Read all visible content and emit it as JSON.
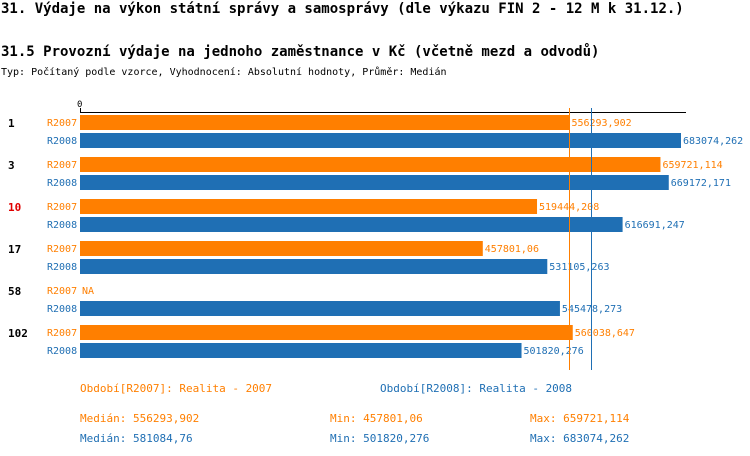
{
  "header": {
    "title": "31. Výdaje na výkon státní správy a samosprávy (dle výkazu FIN 2 - 12 M k 31.12.)",
    "subtitle": "31.5 Provozní výdaje na jednoho zaměstnance v Kč (včetně mezd a odvodů)",
    "info": "Typ: Počítaný podle vzorce, Vyhodnocení: Absolutní hodnoty, Průměr: Medián"
  },
  "colors": {
    "r2007": "#ff7f00",
    "r2008": "#1f6fb4",
    "highlight": "#e00000"
  },
  "chart_data": {
    "type": "bar",
    "orientation": "horizontal",
    "axis_zero_label": "0",
    "series_labels": [
      "R2007",
      "R2008"
    ],
    "xlim": [
      0,
      683074.262
    ],
    "groups": [
      {
        "label": "1",
        "highlight": false,
        "bars": [
          {
            "series": "R2007",
            "value": 556293.902,
            "label": "556293,902"
          },
          {
            "series": "R2008",
            "value": 683074.262,
            "label": "683074,262"
          }
        ]
      },
      {
        "label": "3",
        "highlight": false,
        "bars": [
          {
            "series": "R2007",
            "value": 659721.114,
            "label": "659721,114"
          },
          {
            "series": "R2008",
            "value": 669172.171,
            "label": "669172,171"
          }
        ]
      },
      {
        "label": "10",
        "highlight": true,
        "bars": [
          {
            "series": "R2007",
            "value": 519444.208,
            "label": "519444,208"
          },
          {
            "series": "R2008",
            "value": 616691.247,
            "label": "616691,247"
          }
        ]
      },
      {
        "label": "17",
        "highlight": false,
        "bars": [
          {
            "series": "R2007",
            "value": 457801.06,
            "label": "457801,06"
          },
          {
            "series": "R2008",
            "value": 531105.263,
            "label": "531105,263"
          }
        ]
      },
      {
        "label": "58",
        "highlight": false,
        "bars": [
          {
            "series": "R2007",
            "value": null,
            "label": "NA"
          },
          {
            "series": "R2008",
            "value": 545478.273,
            "label": "545478,273"
          }
        ]
      },
      {
        "label": "102",
        "highlight": false,
        "bars": [
          {
            "series": "R2007",
            "value": 560038.647,
            "label": "560038,647"
          },
          {
            "series": "R2008",
            "value": 501820.276,
            "label": "501820,276"
          }
        ]
      }
    ],
    "median_lines": [
      {
        "series": "R2007",
        "value": 556293.902
      },
      {
        "series": "R2008",
        "value": 581084.76
      }
    ]
  },
  "legend": {
    "r2007": "Období[R2007]: Realita - 2007",
    "r2008": "Období[R2008]: Realita - 2008"
  },
  "stats": {
    "r2007": {
      "median": "Medián: 556293,902",
      "min": "Min: 457801,06",
      "max": "Max: 659721,114"
    },
    "r2008": {
      "median": "Medián: 581084,76",
      "min": "Min: 501820,276",
      "max": "Max: 683074,262"
    }
  }
}
